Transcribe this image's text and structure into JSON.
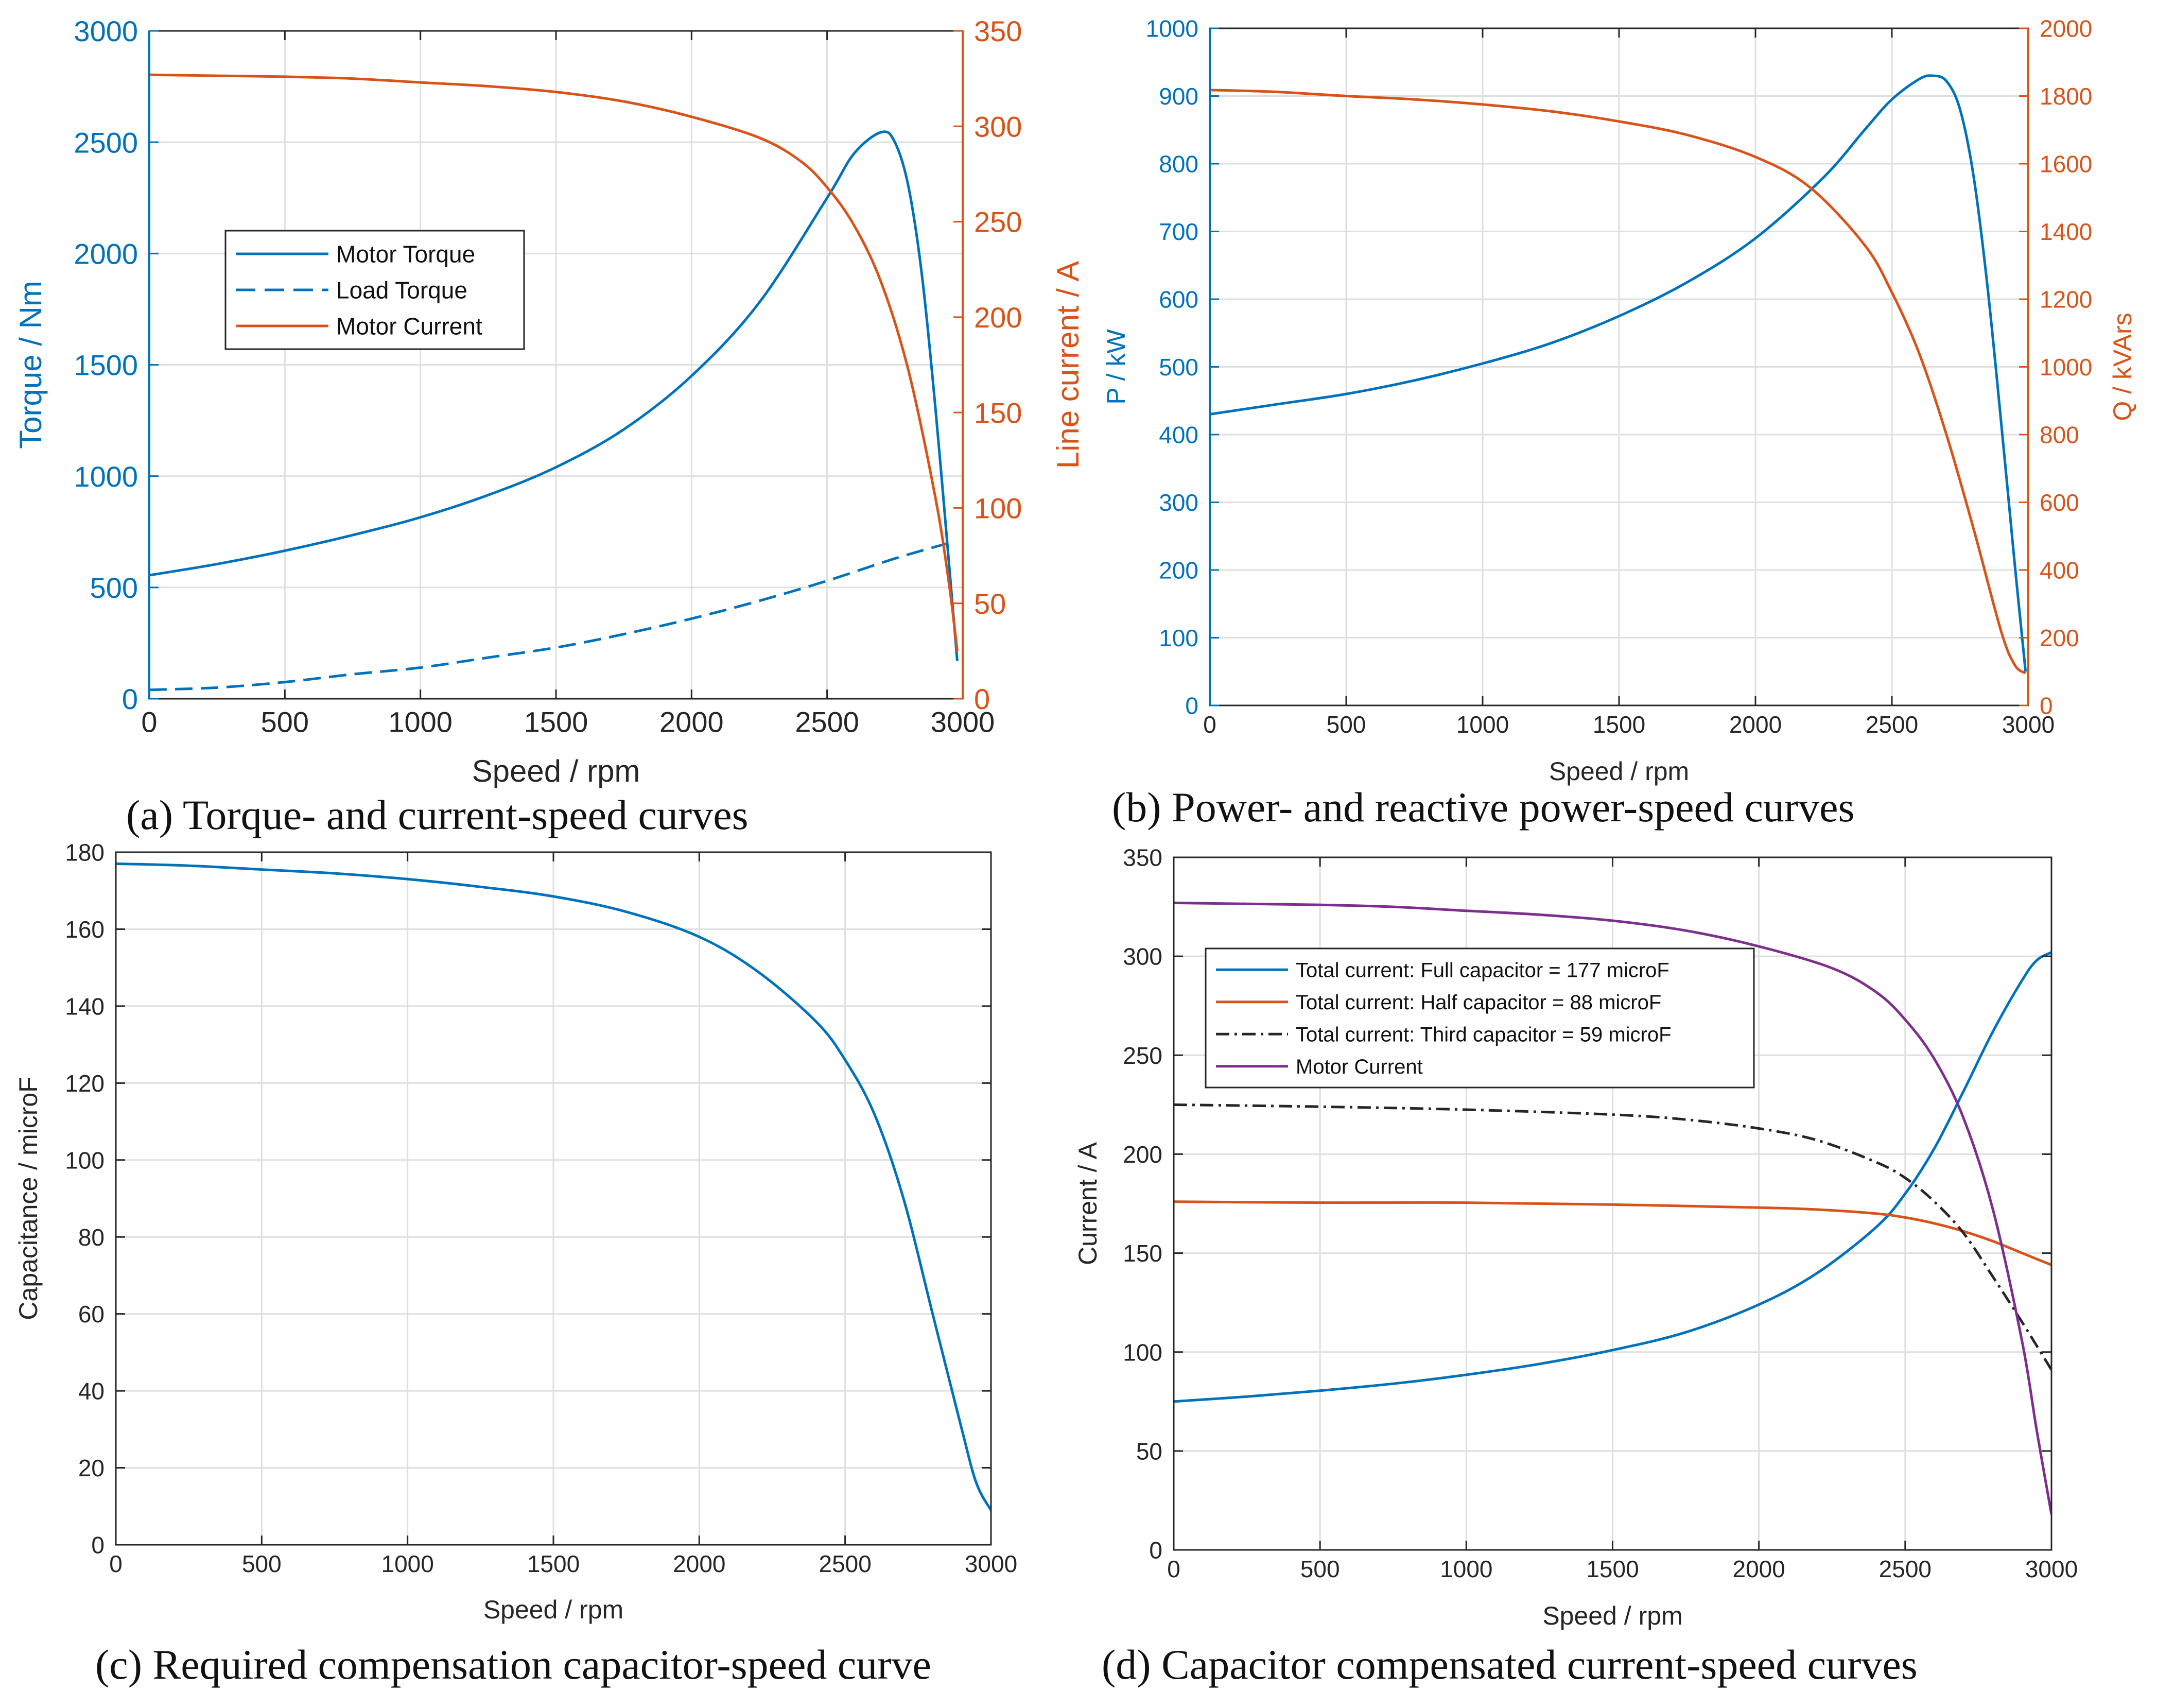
{
  "colors": {
    "blue": "#0072BD",
    "orange": "#D95319",
    "purple": "#7E2F8E",
    "black": "#262626",
    "grid": "#dfdfdf",
    "tick": "#262626"
  },
  "chart_data": [
    {
      "id": "a",
      "type": "line",
      "caption": "(a) Torque- and current-speed curves",
      "xlabel": "Speed / rpm",
      "ylabel": "Torque / Nm",
      "ylabel_right": "Line current / A",
      "xlim": [
        0,
        3000
      ],
      "ylim": [
        0,
        3000
      ],
      "ylim_right": [
        0,
        350
      ],
      "xticks": [
        0,
        500,
        1000,
        1500,
        2000,
        2500,
        3000
      ],
      "yticks": [
        0,
        500,
        1000,
        1500,
        2000,
        2500,
        3000
      ],
      "yticks_right": [
        0,
        50,
        100,
        150,
        200,
        250,
        300,
        350
      ],
      "grid": true,
      "legend": {
        "placement": "middle-left",
        "entries": [
          "Motor Torque",
          "Load Torque",
          "Motor Current"
        ]
      },
      "series": [
        {
          "name": "Motor Torque",
          "axis": "left",
          "color": "blue",
          "style": "solid",
          "x": [
            0,
            250,
            500,
            750,
            1000,
            1250,
            1500,
            1750,
            2000,
            2250,
            2500,
            2600,
            2700,
            2750,
            2800,
            2850,
            2900,
            2950,
            2980
          ],
          "y": [
            555,
            605,
            665,
            735,
            815,
            915,
            1040,
            1210,
            1450,
            1780,
            2250,
            2450,
            2545,
            2500,
            2300,
            1900,
            1300,
            600,
            170
          ]
        },
        {
          "name": "Load Torque",
          "axis": "left",
          "color": "blue",
          "style": "dashed",
          "x": [
            0,
            250,
            500,
            750,
            1000,
            1250,
            1500,
            1750,
            2000,
            2250,
            2500,
            2750,
            2950
          ],
          "y": [
            40,
            50,
            75,
            110,
            140,
            185,
            230,
            290,
            360,
            440,
            530,
            630,
            700
          ]
        },
        {
          "name": "Motor Current",
          "axis": "right",
          "color": "orange",
          "style": "solid",
          "x": [
            0,
            250,
            500,
            750,
            1000,
            1250,
            1500,
            1750,
            2000,
            2250,
            2400,
            2500,
            2600,
            2700,
            2800,
            2900,
            2950,
            2980
          ],
          "y": [
            327,
            326.5,
            326,
            325,
            323,
            321,
            318,
            313,
            305,
            294,
            282,
            268,
            248,
            218,
            172,
            105,
            60,
            25
          ]
        }
      ]
    },
    {
      "id": "b",
      "type": "line",
      "caption": "(b) Power- and reactive power-speed curves",
      "xlabel": "Speed / rpm",
      "ylabel": "P / kW",
      "ylabel_right": "Q / kVArs",
      "xlim": [
        0,
        3000
      ],
      "ylim": [
        0,
        1000
      ],
      "ylim_right": [
        0,
        2000
      ],
      "xticks": [
        0,
        500,
        1000,
        1500,
        2000,
        2500,
        3000
      ],
      "yticks": [
        0,
        100,
        200,
        300,
        400,
        500,
        600,
        700,
        800,
        900,
        1000
      ],
      "yticks_right": [
        0,
        200,
        400,
        600,
        800,
        1000,
        1200,
        1400,
        1600,
        1800,
        2000
      ],
      "grid": true,
      "series": [
        {
          "name": "P",
          "axis": "left",
          "color": "blue",
          "style": "solid",
          "x": [
            0,
            250,
            500,
            750,
            1000,
            1250,
            1500,
            1750,
            2000,
            2250,
            2400,
            2500,
            2600,
            2650,
            2700,
            2750,
            2800,
            2850,
            2900,
            2950,
            2990
          ],
          "y": [
            430,
            445,
            460,
            480,
            505,
            535,
            575,
            625,
            690,
            780,
            850,
            895,
            925,
            930,
            922,
            880,
            780,
            620,
            420,
            210,
            50
          ]
        },
        {
          "name": "Q",
          "axis": "right",
          "color": "orange",
          "style": "solid",
          "x": [
            0,
            250,
            500,
            750,
            1000,
            1250,
            1500,
            1750,
            2000,
            2200,
            2400,
            2500,
            2600,
            2700,
            2800,
            2900,
            2950,
            2990
          ],
          "y": [
            1818,
            1812,
            1800,
            1790,
            1775,
            1755,
            1725,
            1685,
            1620,
            1530,
            1360,
            1220,
            1040,
            800,
            520,
            220,
            120,
            95
          ]
        }
      ]
    },
    {
      "id": "c",
      "type": "line",
      "caption": "(c) Required compensation capacitor-speed curve",
      "xlabel": "Speed / rpm",
      "ylabel": "Capacitance / microF",
      "xlim": [
        0,
        3000
      ],
      "ylim": [
        0,
        180
      ],
      "xticks": [
        0,
        500,
        1000,
        1500,
        2000,
        2500,
        3000
      ],
      "yticks": [
        0,
        20,
        40,
        60,
        80,
        100,
        120,
        140,
        160,
        180
      ],
      "grid": true,
      "series": [
        {
          "name": "Capacitance",
          "axis": "left",
          "color": "blue",
          "style": "solid",
          "x": [
            0,
            250,
            500,
            750,
            1000,
            1250,
            1500,
            1750,
            2000,
            2200,
            2400,
            2500,
            2600,
            2700,
            2800,
            2900,
            2950,
            3000
          ],
          "y": [
            177,
            176.5,
            175.5,
            174.5,
            173,
            171,
            168.5,
            164.5,
            158,
            149,
            136,
            126,
            112,
            90,
            60,
            30,
            16,
            9
          ]
        }
      ]
    },
    {
      "id": "d",
      "type": "line",
      "caption": "(d) Capacitor compensated current-speed curves",
      "xlabel": "Speed / rpm",
      "ylabel": "Current / A",
      "xlim": [
        0,
        3000
      ],
      "ylim": [
        0,
        350
      ],
      "xticks": [
        0,
        500,
        1000,
        1500,
        2000,
        2500,
        3000
      ],
      "yticks": [
        0,
        50,
        100,
        150,
        200,
        250,
        300,
        350
      ],
      "grid": true,
      "legend": {
        "placement": "top-left",
        "entries": [
          "Total current: Full capacitor = 177 microF",
          "Total current: Half capacitor = 88 microF",
          "Total current: Third capacitor = 59 microF",
          "Motor Current"
        ]
      },
      "series": [
        {
          "name": "Total current: Full capacitor = 177 microF",
          "axis": "left",
          "color": "blue",
          "style": "solid",
          "x": [
            0,
            250,
            500,
            750,
            1000,
            1250,
            1500,
            1750,
            2000,
            2200,
            2400,
            2500,
            2600,
            2700,
            2800,
            2900,
            2950,
            3000
          ],
          "y": [
            75,
            77.5,
            80.5,
            84,
            88.5,
            94,
            101,
            110,
            124,
            140,
            163,
            180,
            203,
            232,
            262,
            288,
            298,
            302
          ]
        },
        {
          "name": "Total current: Half capacitor = 88 microF",
          "axis": "left",
          "color": "orange",
          "style": "solid",
          "x": [
            0,
            500,
            1000,
            1500,
            2000,
            2200,
            2400,
            2500,
            2600,
            2700,
            2800,
            2900,
            3000
          ],
          "y": [
            176,
            175.5,
            175.5,
            174.5,
            173,
            172,
            170,
            168,
            165,
            161,
            156,
            150,
            144
          ]
        },
        {
          "name": "Total current: Third capacitor = 59 microF",
          "axis": "left",
          "color": "black",
          "style": "dashdot",
          "x": [
            0,
            500,
            1000,
            1500,
            1750,
            2000,
            2200,
            2400,
            2500,
            2600,
            2700,
            2800,
            2900,
            3000
          ],
          "y": [
            225,
            224,
            222.5,
            220,
            217.5,
            213,
            207,
            196,
            188,
            176,
            160,
            138,
            115,
            91
          ]
        },
        {
          "name": "Motor Current",
          "axis": "left",
          "color": "purple",
          "style": "solid",
          "x": [
            0,
            250,
            500,
            750,
            1000,
            1250,
            1500,
            1750,
            2000,
            2250,
            2400,
            2500,
            2600,
            2700,
            2800,
            2900,
            2950,
            3000
          ],
          "y": [
            327,
            326.5,
            326,
            325,
            323,
            321,
            318,
            313,
            305,
            294,
            282,
            268,
            248,
            218,
            172,
            105,
            60,
            18
          ]
        }
      ]
    }
  ]
}
